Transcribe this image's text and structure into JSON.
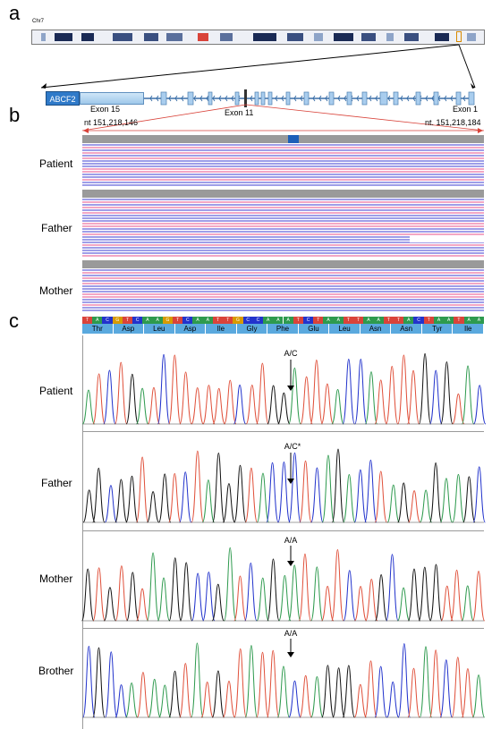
{
  "panels": {
    "a": "a",
    "b": "b",
    "c": "c"
  },
  "chromosome": {
    "name": "Chr7"
  },
  "gene": {
    "name": "ABCF2",
    "exon_left": "Exon 15",
    "exon_mid": "Exon 11",
    "exon_right": "Exon 1",
    "nt_left": "nt 151,218,146",
    "nt_right": "nt. 151,218,184"
  },
  "samples_b": [
    "Patient",
    "Father",
    "Mother"
  ],
  "amino_acids": [
    "Thr",
    "Asp",
    "Leu",
    "Asp",
    "Ile",
    "Gly",
    "Phe",
    "Glu",
    "Leu",
    "Asn",
    "Asn",
    "Tyr",
    "Ile"
  ],
  "nucleotides": [
    "T",
    "A",
    "C",
    "G",
    "T",
    "C",
    "A",
    "A",
    "G",
    "T",
    "C",
    "A",
    "A",
    "T",
    "T",
    "G",
    "C",
    "C",
    "A",
    "A",
    "A",
    "T",
    "C",
    "T",
    "A",
    "A",
    "T",
    "T",
    "A",
    "A",
    "T",
    "T",
    "A",
    "C",
    "T",
    "A",
    "A",
    "T",
    "A",
    "A"
  ],
  "samples_c": [
    {
      "name": "Patient",
      "annotation": "A/C"
    },
    {
      "name": "Father",
      "annotation": "A/C*"
    },
    {
      "name": "Mother",
      "annotation": "A/A"
    },
    {
      "name": "Brother",
      "annotation": "A/A"
    }
  ],
  "colors": {
    "read_pink": "#f3a7c4",
    "read_purple": "#9e9ee8",
    "trace_A": "#2e9a4e",
    "trace_C": "#2233cc",
    "trace_G": "#111111",
    "trace_T": "#e0503a"
  }
}
